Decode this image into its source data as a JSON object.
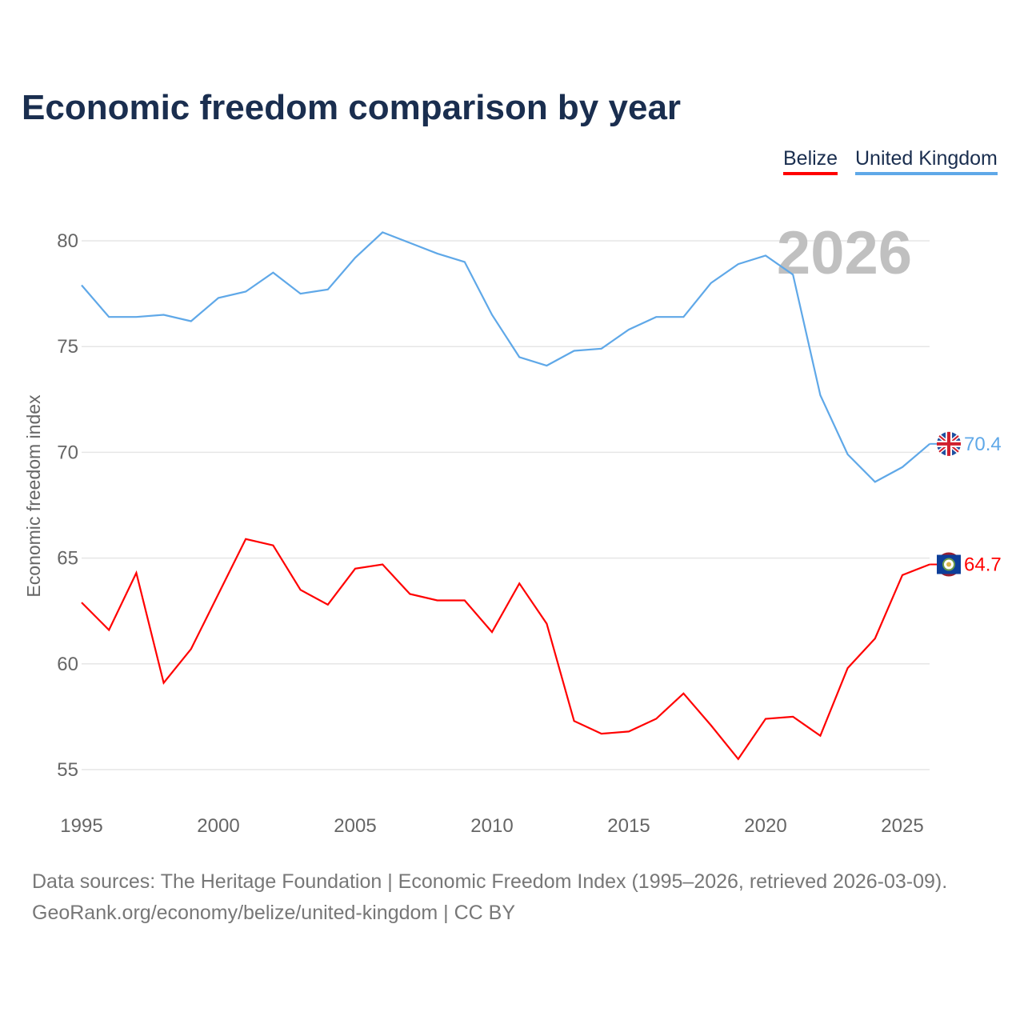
{
  "title": "Economic freedom comparison by year",
  "footer": {
    "line1": "Data sources: The Heritage Foundation | Economic Freedom Index (1995–2026, retrieved 2026-03-09).",
    "line2": "GeoRank.org/economy/belize/united-kingdom | CC BY"
  },
  "chart_data": {
    "type": "line",
    "title": "Economic freedom comparison by year",
    "xlabel": "",
    "ylabel": "Economic freedom index",
    "year_watermark": "2026",
    "xlim": [
      1995,
      2026
    ],
    "ylim": [
      54,
      82
    ],
    "yticks": [
      55,
      60,
      65,
      70,
      75,
      80
    ],
    "xticks": [
      1995,
      2000,
      2005,
      2010,
      2015,
      2020,
      2025
    ],
    "grid": true,
    "legend_position": "top-right",
    "x": [
      1995,
      1996,
      1997,
      1998,
      1999,
      2000,
      2001,
      2002,
      2003,
      2004,
      2005,
      2006,
      2007,
      2008,
      2009,
      2010,
      2011,
      2012,
      2013,
      2014,
      2015,
      2016,
      2017,
      2018,
      2019,
      2020,
      2021,
      2022,
      2023,
      2024,
      2025,
      2026
    ],
    "series": [
      {
        "name": "Belize",
        "color": "#ff0000",
        "end_label": "64.7",
        "flag": "belize-flag",
        "values": [
          62.9,
          61.6,
          64.3,
          59.1,
          60.7,
          63.3,
          65.9,
          65.6,
          63.5,
          62.8,
          64.5,
          64.7,
          63.3,
          63.0,
          63.0,
          61.5,
          63.8,
          61.9,
          57.3,
          56.7,
          56.8,
          57.4,
          58.6,
          57.1,
          55.5,
          57.4,
          57.5,
          56.6,
          59.8,
          61.2,
          64.2,
          64.7
        ]
      },
      {
        "name": "United Kingdom",
        "color": "#5fa8e8",
        "end_label": "70.4",
        "flag": "uk-flag",
        "values": [
          77.9,
          76.4,
          76.4,
          76.5,
          76.2,
          77.3,
          77.6,
          78.5,
          77.5,
          77.7,
          79.2,
          80.4,
          79.9,
          79.4,
          79.0,
          76.5,
          74.5,
          74.1,
          74.8,
          74.9,
          75.8,
          76.4,
          76.4,
          78.0,
          78.9,
          79.3,
          78.4,
          72.7,
          69.9,
          68.6,
          69.3,
          70.4
        ]
      }
    ]
  }
}
